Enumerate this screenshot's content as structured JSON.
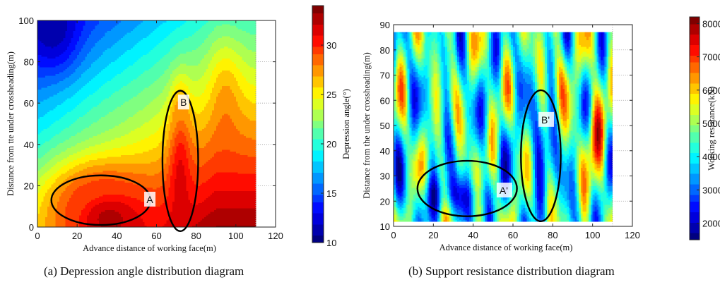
{
  "chart_data": [
    {
      "type": "heatmap",
      "title": "",
      "xlabel": "Advance distance of working face(m)",
      "ylabel": "Distance from tte under crossheading(m)",
      "xlim": [
        0,
        120
      ],
      "ylim": [
        0,
        100
      ],
      "x_ticks": [
        0,
        20,
        40,
        60,
        80,
        100,
        120
      ],
      "y_ticks": [
        0,
        20,
        40,
        60,
        80,
        100
      ],
      "data_extent": {
        "x": [
          0,
          110
        ],
        "y": [
          0,
          100
        ]
      },
      "colorbar": {
        "label": "Depression angle(°)",
        "min": 10,
        "max": 34,
        "ticks": [
          10,
          15,
          20,
          25,
          30
        ]
      },
      "hotspots": [
        {
          "x": 36,
          "y": 4,
          "value": 33,
          "sx": 15,
          "sy": 12
        },
        {
          "x": 30,
          "y": 12,
          "value": 30,
          "sx": 18,
          "sy": 14
        },
        {
          "x": 72,
          "y": 20,
          "value": 32,
          "sx": 4,
          "sy": 25
        },
        {
          "x": 72,
          "y": 50,
          "value": 28,
          "sx": 3,
          "sy": 12
        },
        {
          "x": 45,
          "y": 32,
          "value": 22,
          "sx": 14,
          "sy": 16
        }
      ],
      "annotations": [
        {
          "label": "A",
          "cx": 32,
          "cy": 13,
          "rx": 25,
          "ry": 12,
          "text_x": 57,
          "text_y": 13
        },
        {
          "label": "B",
          "cx": 72,
          "cy": 32,
          "rx": 9,
          "ry": 34,
          "text_x": 74,
          "text_y": 60
        }
      ]
    },
    {
      "type": "heatmap",
      "title": "",
      "xlabel": "Advance distance of working face(m)",
      "ylabel": "Distance from the under crossheading(m)",
      "xlim": [
        0,
        120
      ],
      "ylim": [
        10,
        90
      ],
      "x_ticks": [
        0,
        20,
        40,
        60,
        80,
        100,
        120
      ],
      "y_ticks": [
        10,
        20,
        30,
        40,
        50,
        60,
        70,
        80,
        90
      ],
      "data_extent": {
        "x": [
          0,
          110
        ],
        "y": [
          12,
          87
        ]
      },
      "colorbar": {
        "label": "Working resistance(kN)",
        "min": 1500,
        "max": 8200,
        "ticks": [
          2000,
          3000,
          4000,
          5000,
          6000,
          7000,
          8000
        ]
      },
      "annotations": [
        {
          "label": "A'",
          "cx": 37,
          "cy": 25,
          "rx": 25,
          "ry": 11,
          "text_x": 55,
          "text_y": 24
        },
        {
          "label": "B'",
          "cx": 74,
          "cy": 38,
          "rx": 10,
          "ry": 26,
          "text_x": 76,
          "text_y": 52
        }
      ]
    }
  ],
  "captions": {
    "a": "(a) Depression angle distribution diagram",
    "b": "(b) Support resistance distribution diagram"
  }
}
